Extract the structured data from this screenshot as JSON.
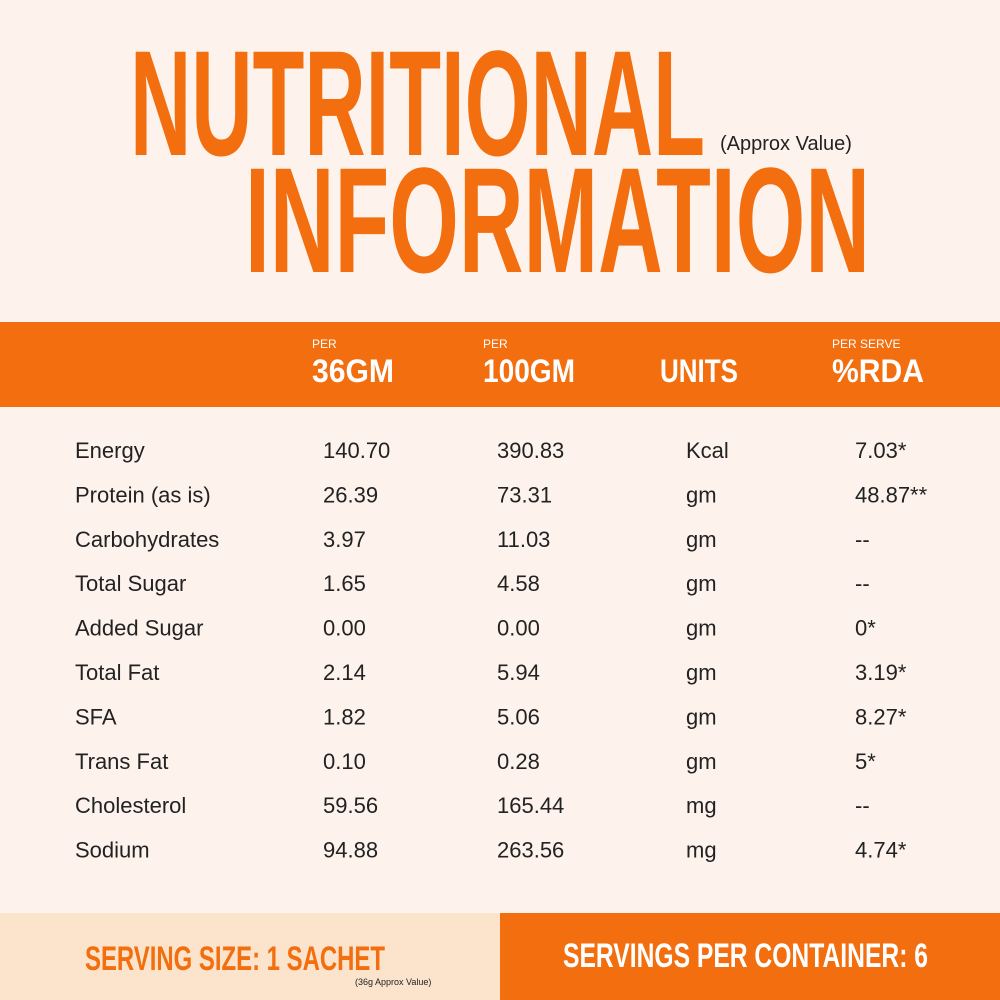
{
  "header": {
    "title": [
      "NUTRITIONAL",
      "INFORMATION"
    ],
    "note": "(Approx Value)"
  },
  "table": {
    "columns": [
      {
        "small": "PER",
        "big": "36GM"
      },
      {
        "small": "PER",
        "big": "100GM"
      },
      {
        "big": "UNITS"
      },
      {
        "small": "PER SERVE",
        "big": "%RDA"
      }
    ],
    "rows": [
      [
        "Energy",
        "140.70",
        "390.83",
        "Kcal",
        "7.03*"
      ],
      [
        "Protein (as is)",
        "26.39",
        "73.31",
        "gm",
        "48.87**"
      ],
      [
        "Carbohydrates",
        "3.97",
        "11.03",
        "gm",
        "--"
      ],
      [
        "Total Sugar",
        "1.65",
        "4.58",
        "gm",
        "--"
      ],
      [
        "Added Sugar",
        "0.00",
        "0.00",
        "gm",
        "0*"
      ],
      [
        "Total Fat",
        "2.14",
        "5.94",
        "gm",
        "3.19*"
      ],
      [
        "SFA",
        "1.82",
        "5.06",
        "gm",
        "8.27*"
      ],
      [
        "Trans Fat",
        "0.10",
        "0.28",
        "gm",
        "5*"
      ],
      [
        "Cholesterol",
        "59.56",
        "165.44",
        "mg",
        "--"
      ],
      [
        "Sodium",
        "94.88",
        "263.56",
        "mg",
        "4.74*"
      ]
    ]
  },
  "footer": {
    "serving_size": "SERVING SIZE: 1 SACHET",
    "serving_note": "(36g Approx Value)",
    "servings": "SERVINGS PER CONTAINER: 6"
  }
}
